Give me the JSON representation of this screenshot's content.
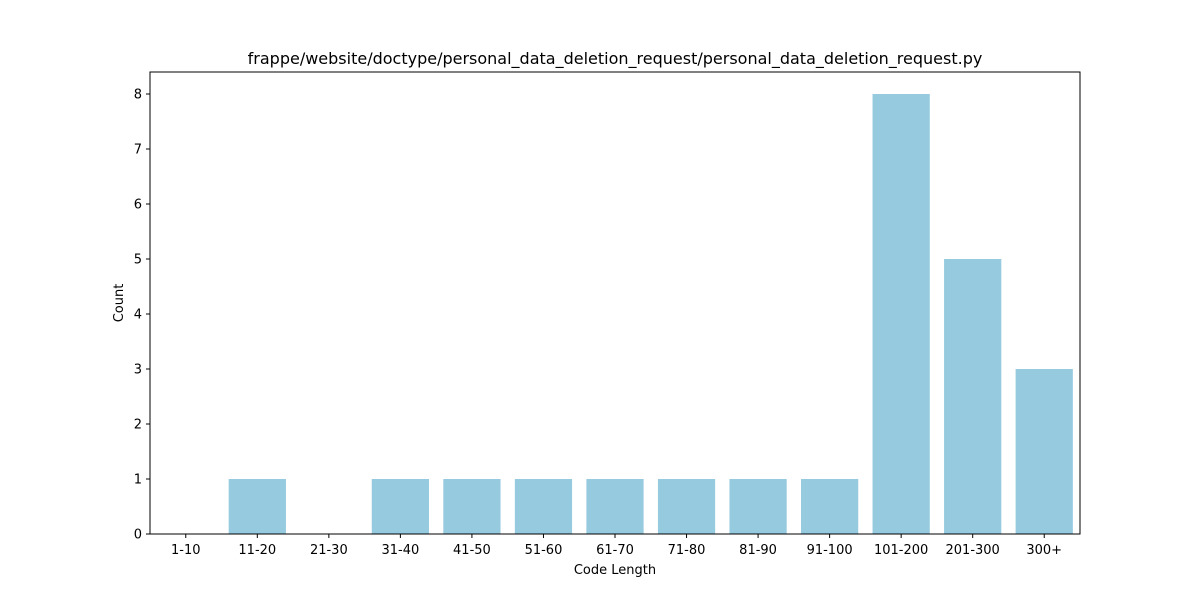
{
  "chart_data": {
    "type": "bar",
    "title": "frappe/website/doctype/personal_data_deletion_request/personal_data_deletion_request.py",
    "xlabel": "Code Length",
    "ylabel": "Count",
    "categories": [
      "1-10",
      "11-20",
      "21-30",
      "31-40",
      "41-50",
      "51-60",
      "61-70",
      "71-80",
      "81-90",
      "91-100",
      "101-200",
      "201-300",
      "300+"
    ],
    "values": [
      0,
      1,
      0,
      1,
      1,
      1,
      1,
      1,
      1,
      1,
      8,
      5,
      3
    ],
    "ylim": [
      0,
      8.4
    ],
    "yticks": [
      "0",
      "1",
      "2",
      "3",
      "4",
      "5",
      "6",
      "7",
      "8"
    ],
    "bar_color": "#95cadf",
    "grid": false,
    "legend": "none"
  }
}
